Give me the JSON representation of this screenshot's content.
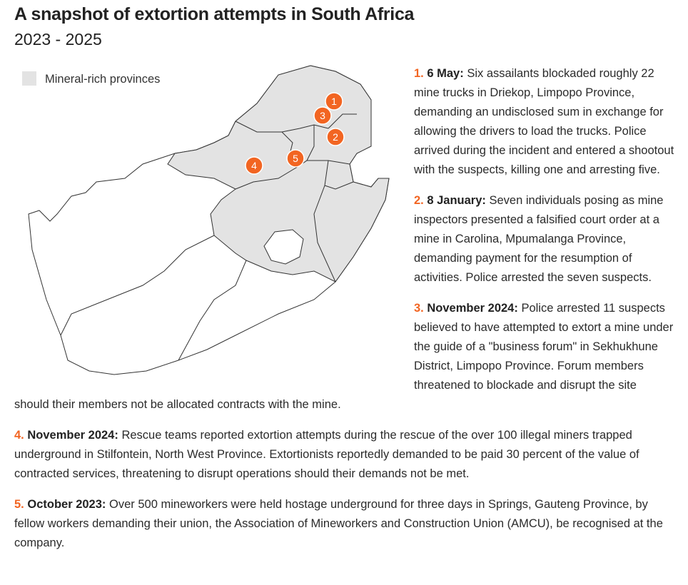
{
  "header": {
    "title": "A snapshot of extortion attempts in South Africa",
    "subtitle": "2023 - 2025"
  },
  "legend": {
    "label": "Mineral-rich provinces"
  },
  "map": {
    "markers": [
      "1",
      "2",
      "3",
      "4",
      "5"
    ]
  },
  "entries": [
    {
      "number": "1.",
      "date": "6 May:",
      "text": "Six assailants blockaded roughly 22 mine trucks in Driekop, Limpopo Province, demanding an undisclosed sum in exchange for allowing the drivers to load the trucks. Police arrived during the incident and entered a shootout with the suspects, killing one and arresting five."
    },
    {
      "number": "2.",
      "date": "8 January:",
      "text": "Seven individuals posing as mine inspectors presented a falsified court order at a mine in Carolina, Mpumalanga Province, demanding payment for the resumption of activities. Police arrested the seven suspects."
    },
    {
      "number": "3.",
      "date": "November 2024:",
      "text": "Police arrested 11 suspects believed to have attempted to extort a mine under the guide of a \"business forum\" in Sekhukhune District, Limpopo Province. Forum members threatened to blockade and disrupt the site should their members not be allocated contracts with the mine."
    },
    {
      "number": "4.",
      "date": "November 2024:",
      "text": "Rescue teams reported extortion attempts during the rescue of the over 100 illegal miners trapped underground in Stilfontein, North West Province. Extortionists reportedly demanded to be paid 30 percent of the value of contracted services, threatening to disrupt operations should their demands not be met."
    },
    {
      "number": "5.",
      "date": "October 2023:",
      "text": "Over 500 mineworkers were held hostage underground for three days in Springs, Gauteng Province, by fellow workers demanding their union, the Association of Mineworkers and Construction Union (AMCU), be recognised at the company."
    }
  ]
}
